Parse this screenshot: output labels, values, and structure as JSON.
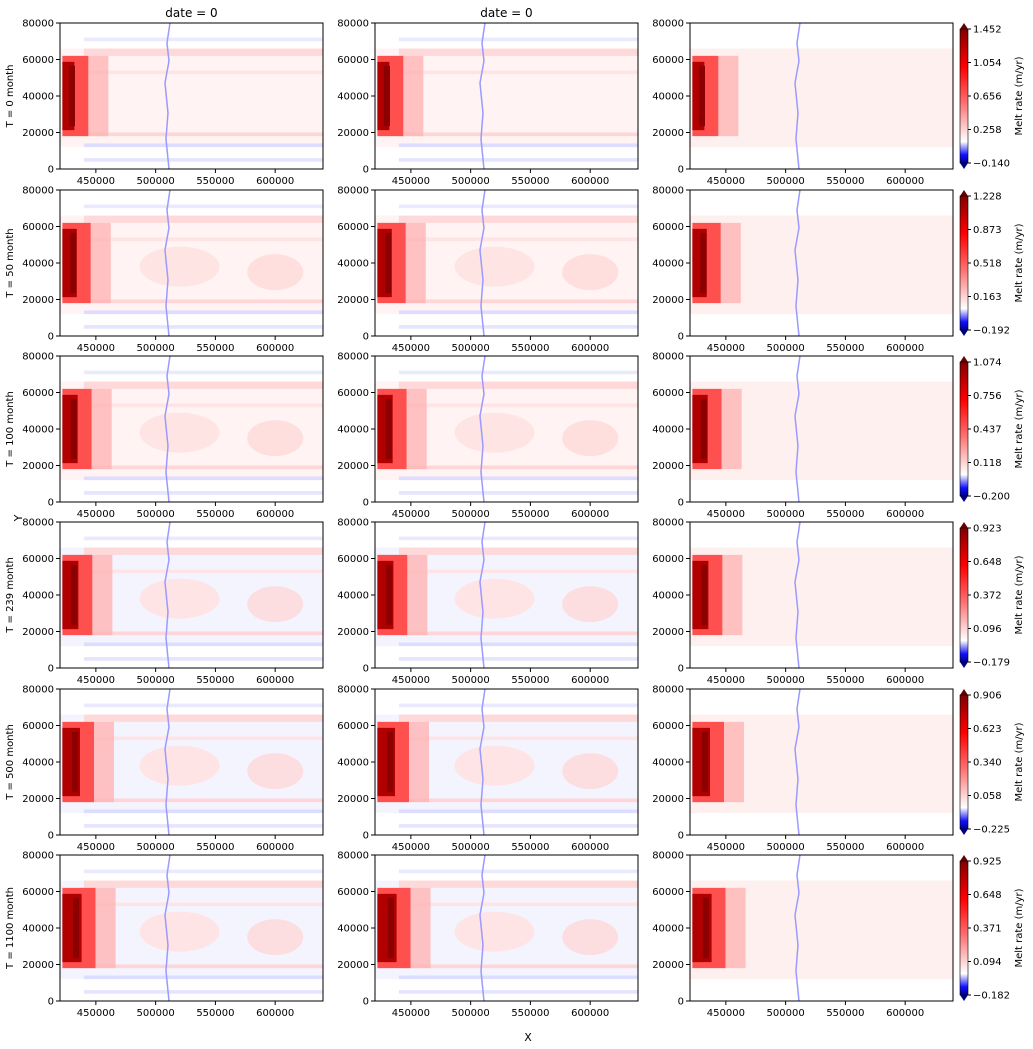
{
  "figure": {
    "column_titles": [
      "date = 0",
      "date = 0",
      ""
    ],
    "xlabel": "X",
    "ylabel": "Y",
    "colorbar_label": "Melt rate (m/yr)"
  },
  "chart_data": {
    "type": "heatmap",
    "x_range": [
      420000,
      640000
    ],
    "y_range": [
      0,
      80000
    ],
    "x_ticks": [
      450000,
      500000,
      550000,
      600000
    ],
    "y_ticks": [
      0,
      20000,
      40000,
      60000,
      80000
    ],
    "colormap": "seismic",
    "colors": {
      "low": "#0000ff",
      "mid": "#ffffff",
      "high": "#800000"
    },
    "rows": [
      {
        "label": "T = 0 month",
        "cbar_ticks": [
          "1.452",
          "1.054",
          "0.656",
          "0.258",
          "−0.140"
        ],
        "intensity": 1.0
      },
      {
        "label": "T = 50 month",
        "cbar_ticks": [
          "1.228",
          "0.873",
          "0.518",
          "0.163",
          "−0.192"
        ],
        "intensity": 0.9
      },
      {
        "label": "T = 100 month",
        "cbar_ticks": [
          "1.074",
          "0.756",
          "0.437",
          "0.118",
          "−0.200"
        ],
        "intensity": 0.85
      },
      {
        "label": "T = 239 month",
        "cbar_ticks": [
          "0.923",
          "0.648",
          "0.372",
          "0.096",
          "−0.179"
        ],
        "intensity": 0.8
      },
      {
        "label": "T = 500 month",
        "cbar_ticks": [
          "0.906",
          "0.623",
          "0.340",
          "0.058",
          "−0.225"
        ],
        "intensity": 0.8
      },
      {
        "label": "T = 1100 month",
        "cbar_ticks": [
          "0.925",
          "0.648",
          "0.371",
          "0.094",
          "−0.182"
        ],
        "intensity": 0.8
      }
    ]
  }
}
